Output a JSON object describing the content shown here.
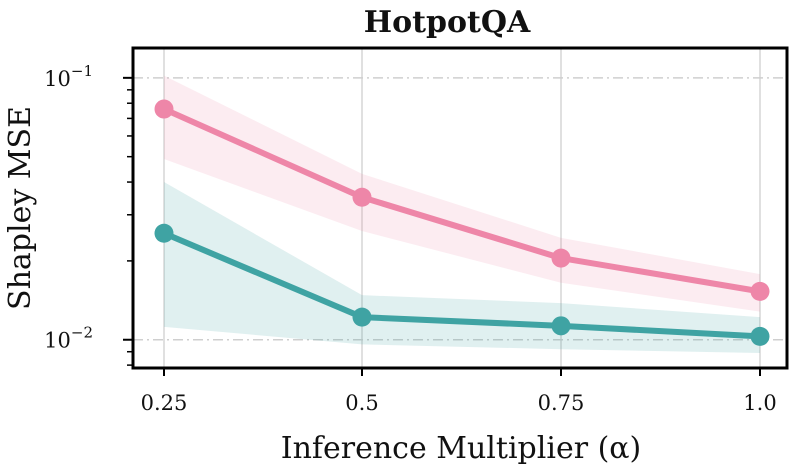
{
  "chart_data": {
    "type": "line",
    "title": "HotpotQA",
    "xlabel": "Inference Multiplier (α)",
    "ylabel": "Shapley MSE",
    "yscale": "log",
    "ylim": [
      0.0078,
      0.13
    ],
    "x": [
      0.25,
      0.5,
      0.75,
      1.0
    ],
    "x_tick_labels": [
      "0.25",
      "0.5",
      "0.75",
      "1.0"
    ],
    "y_ticks": [
      {
        "base": "10",
        "exp": "−1",
        "value": 0.1
      },
      {
        "base": "10",
        "exp": "−2",
        "value": 0.01
      }
    ],
    "grid": true,
    "series": [
      {
        "name": "pink series",
        "color": "#ee86a8",
        "values": [
          0.076,
          0.035,
          0.0205,
          0.0153
        ],
        "lower": [
          0.049,
          0.026,
          0.0165,
          0.0128
        ],
        "upper": [
          0.102,
          0.043,
          0.0245,
          0.0178
        ]
      },
      {
        "name": "teal series",
        "color": "#3fa3a3",
        "values": [
          0.0255,
          0.0122,
          0.0113,
          0.0103
        ],
        "lower": [
          0.0112,
          0.0096,
          0.0092,
          0.0089
        ],
        "upper": [
          0.04,
          0.0148,
          0.0138,
          0.0122
        ]
      }
    ]
  }
}
